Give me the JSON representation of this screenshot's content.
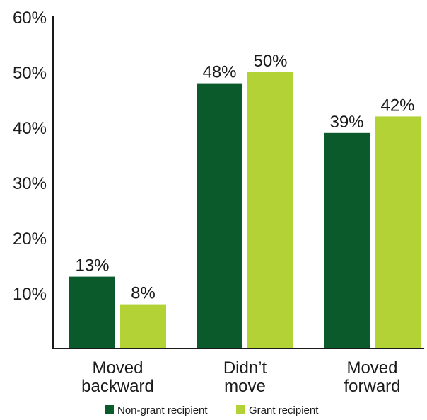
{
  "chart_data": {
    "type": "bar",
    "categories": [
      [
        "Moved",
        "backward"
      ],
      [
        "Didn’t",
        "move"
      ],
      [
        "Moved",
        "forward"
      ]
    ],
    "ylim": [
      0,
      60
    ],
    "yticks": [
      "60%",
      "50%",
      "40%",
      "30%",
      "20%",
      "10%"
    ],
    "ytick_values": [
      60,
      50,
      40,
      30,
      20,
      10
    ],
    "series": [
      {
        "name": "Non-grant recipient",
        "color": "#0a5a2b",
        "values": [
          13,
          48,
          39
        ],
        "labels": [
          "13%",
          "48%",
          "39%"
        ]
      },
      {
        "name": "Grant recipient",
        "color": "#b2d235",
        "values": [
          8,
          50,
          42
        ],
        "labels": [
          "8%",
          "50%",
          "42%"
        ]
      }
    ],
    "legend_position": "bottom",
    "grid": false,
    "xlabel": "",
    "ylabel": ""
  }
}
